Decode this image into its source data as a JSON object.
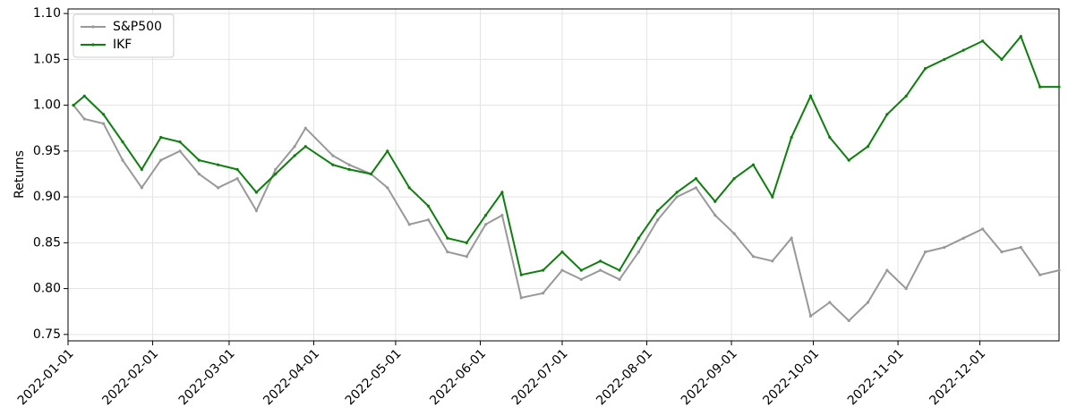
{
  "chart_data": {
    "type": "line",
    "ylabel": "Returns",
    "x": [
      "2022-01-03",
      "2022-01-07",
      "2022-01-14",
      "2022-01-21",
      "2022-01-28",
      "2022-02-04",
      "2022-02-11",
      "2022-02-18",
      "2022-02-25",
      "2022-03-04",
      "2022-03-11",
      "2022-03-18",
      "2022-03-25",
      "2022-03-29",
      "2022-04-08",
      "2022-04-14",
      "2022-04-22",
      "2022-04-28",
      "2022-05-06",
      "2022-05-13",
      "2022-05-20",
      "2022-05-27",
      "2022-06-03",
      "2022-06-09",
      "2022-06-16",
      "2022-06-24",
      "2022-07-01",
      "2022-07-08",
      "2022-07-15",
      "2022-07-22",
      "2022-07-29",
      "2022-08-05",
      "2022-08-12",
      "2022-08-19",
      "2022-08-26",
      "2022-09-02",
      "2022-09-09",
      "2022-09-16",
      "2022-09-23",
      "2022-09-30",
      "2022-10-07",
      "2022-10-14",
      "2022-10-21",
      "2022-10-28",
      "2022-11-04",
      "2022-11-11",
      "2022-11-18",
      "2022-11-25",
      "2022-12-02",
      "2022-12-09",
      "2022-12-16",
      "2022-12-23",
      "2022-12-30"
    ],
    "series": [
      {
        "name": "S&P500",
        "color": "#999999",
        "values": [
          1.0,
          0.985,
          0.98,
          0.94,
          0.91,
          0.94,
          0.95,
          0.925,
          0.91,
          0.92,
          0.885,
          0.93,
          0.955,
          0.975,
          0.945,
          0.935,
          0.925,
          0.91,
          0.87,
          0.875,
          0.84,
          0.835,
          0.87,
          0.88,
          0.79,
          0.795,
          0.82,
          0.81,
          0.82,
          0.81,
          0.84,
          0.875,
          0.9,
          0.91,
          0.88,
          0.86,
          0.835,
          0.83,
          0.855,
          0.77,
          0.785,
          0.765,
          0.785,
          0.82,
          0.8,
          0.84,
          0.845,
          0.855,
          0.865,
          0.84,
          0.845,
          0.815,
          0.82
        ]
      },
      {
        "name": "IKF",
        "color": "#0f7d0f",
        "values": [
          1.0,
          1.01,
          0.99,
          0.96,
          0.93,
          0.965,
          0.96,
          0.94,
          0.935,
          0.93,
          0.905,
          0.925,
          0.945,
          0.955,
          0.935,
          0.93,
          0.925,
          0.95,
          0.91,
          0.89,
          0.855,
          0.85,
          0.88,
          0.905,
          0.815,
          0.82,
          0.84,
          0.82,
          0.83,
          0.82,
          0.855,
          0.885,
          0.905,
          0.92,
          0.895,
          0.92,
          0.935,
          0.9,
          0.965,
          1.01,
          0.965,
          0.94,
          0.955,
          0.99,
          1.01,
          1.04,
          1.05,
          1.06,
          1.07,
          1.05,
          1.075,
          1.02,
          1.02
        ]
      }
    ],
    "xlim": [
      "2022-01-01",
      "2022-12-30"
    ],
    "xticks": [
      "2022-01-01",
      "2022-02-01",
      "2022-03-01",
      "2022-04-01",
      "2022-05-01",
      "2022-06-01",
      "2022-07-01",
      "2022-08-01",
      "2022-09-01",
      "2022-10-01",
      "2022-11-01",
      "2022-12-01"
    ],
    "ylim": [
      0.743,
      1.105
    ],
    "yticks": [
      0.75,
      {
        "value": 0.8,
        "label": "0.80"
      },
      0.85,
      {
        "value": 0.9,
        "label": "0.90"
      },
      0.95,
      {
        "value": 1.0,
        "label": "1.00"
      },
      1.05,
      {
        "value": 1.1,
        "label": "1.10"
      }
    ],
    "grid": true,
    "legend": "upper left"
  }
}
